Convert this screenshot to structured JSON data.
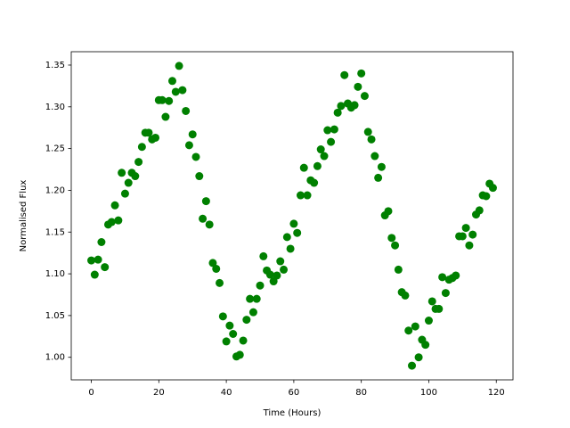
{
  "chart_data": {
    "type": "scatter",
    "xlabel": "Time (Hours)",
    "ylabel": "Normalised Flux",
    "color": "#008000",
    "x": [
      0,
      1,
      2,
      3,
      4,
      5,
      6,
      7,
      8,
      9,
      10,
      11,
      12,
      13,
      14,
      15,
      16,
      17,
      18,
      19,
      20,
      21,
      22,
      23,
      24,
      25,
      26,
      27,
      28,
      29,
      30,
      31,
      32,
      33,
      34,
      35,
      36,
      37,
      38,
      39,
      40,
      41,
      42,
      43,
      44,
      45,
      46,
      47,
      48,
      49,
      50,
      51,
      52,
      53,
      54,
      55,
      56,
      57,
      58,
      59,
      60,
      61,
      62,
      63,
      64,
      65,
      66,
      67,
      68,
      69,
      70,
      71,
      72,
      73,
      74,
      75,
      76,
      77,
      78,
      79,
      80,
      81,
      82,
      83,
      84,
      85,
      86,
      87,
      88,
      89,
      90,
      91,
      92,
      93,
      94,
      95,
      96,
      97,
      98,
      99,
      100,
      101,
      102,
      103,
      104,
      105,
      106,
      107,
      108,
      109,
      110,
      111,
      112,
      113,
      114,
      115,
      116,
      117,
      118,
      119
    ],
    "values": [
      1.116,
      1.099,
      1.117,
      1.138,
      1.108,
      1.159,
      1.162,
      1.182,
      1.164,
      1.221,
      1.196,
      1.209,
      1.221,
      1.217,
      1.234,
      1.252,
      1.269,
      1.269,
      1.261,
      1.263,
      1.308,
      1.308,
      1.288,
      1.307,
      1.331,
      1.318,
      1.349,
      1.32,
      1.295,
      1.254,
      1.267,
      1.24,
      1.217,
      1.166,
      1.187,
      1.159,
      1.113,
      1.106,
      1.089,
      1.049,
      1.019,
      1.038,
      1.028,
      1.001,
      1.003,
      1.02,
      1.045,
      1.07,
      1.054,
      1.07,
      1.086,
      1.121,
      1.104,
      1.099,
      1.091,
      1.098,
      1.115,
      1.105,
      1.144,
      1.13,
      1.16,
      1.149,
      1.194,
      1.227,
      1.194,
      1.212,
      1.209,
      1.229,
      1.249,
      1.241,
      1.272,
      1.258,
      1.273,
      1.293,
      1.301,
      1.338,
      1.304,
      1.299,
      1.302,
      1.324,
      1.34,
      1.313,
      1.27,
      1.261,
      1.241,
      1.215,
      1.228,
      1.17,
      1.175,
      1.143,
      1.134,
      1.105,
      1.078,
      1.074,
      1.032,
      0.99,
      1.037,
      1.0,
      1.021,
      1.015,
      1.044,
      1.067,
      1.058,
      1.058,
      1.096,
      1.077,
      1.093,
      1.095,
      1.098,
      1.145,
      1.145,
      1.155,
      1.134,
      1.147,
      1.171,
      1.176,
      1.194,
      1.193,
      1.208,
      1.203
    ],
    "xlim": [
      -5.95,
      124.95
    ],
    "ylim": [
      0.973,
      1.366
    ],
    "xticks": [
      0,
      20,
      40,
      60,
      80,
      100,
      120
    ],
    "yticks": [
      {
        "value": 1,
        "label": "1.00"
      },
      1.05,
      {
        "value": 1.1,
        "label": "1.10"
      },
      1.15,
      {
        "value": 1.2,
        "label": "1.20"
      },
      1.25,
      {
        "value": 1.3,
        "label": "1.30"
      },
      1.35
    ]
  }
}
